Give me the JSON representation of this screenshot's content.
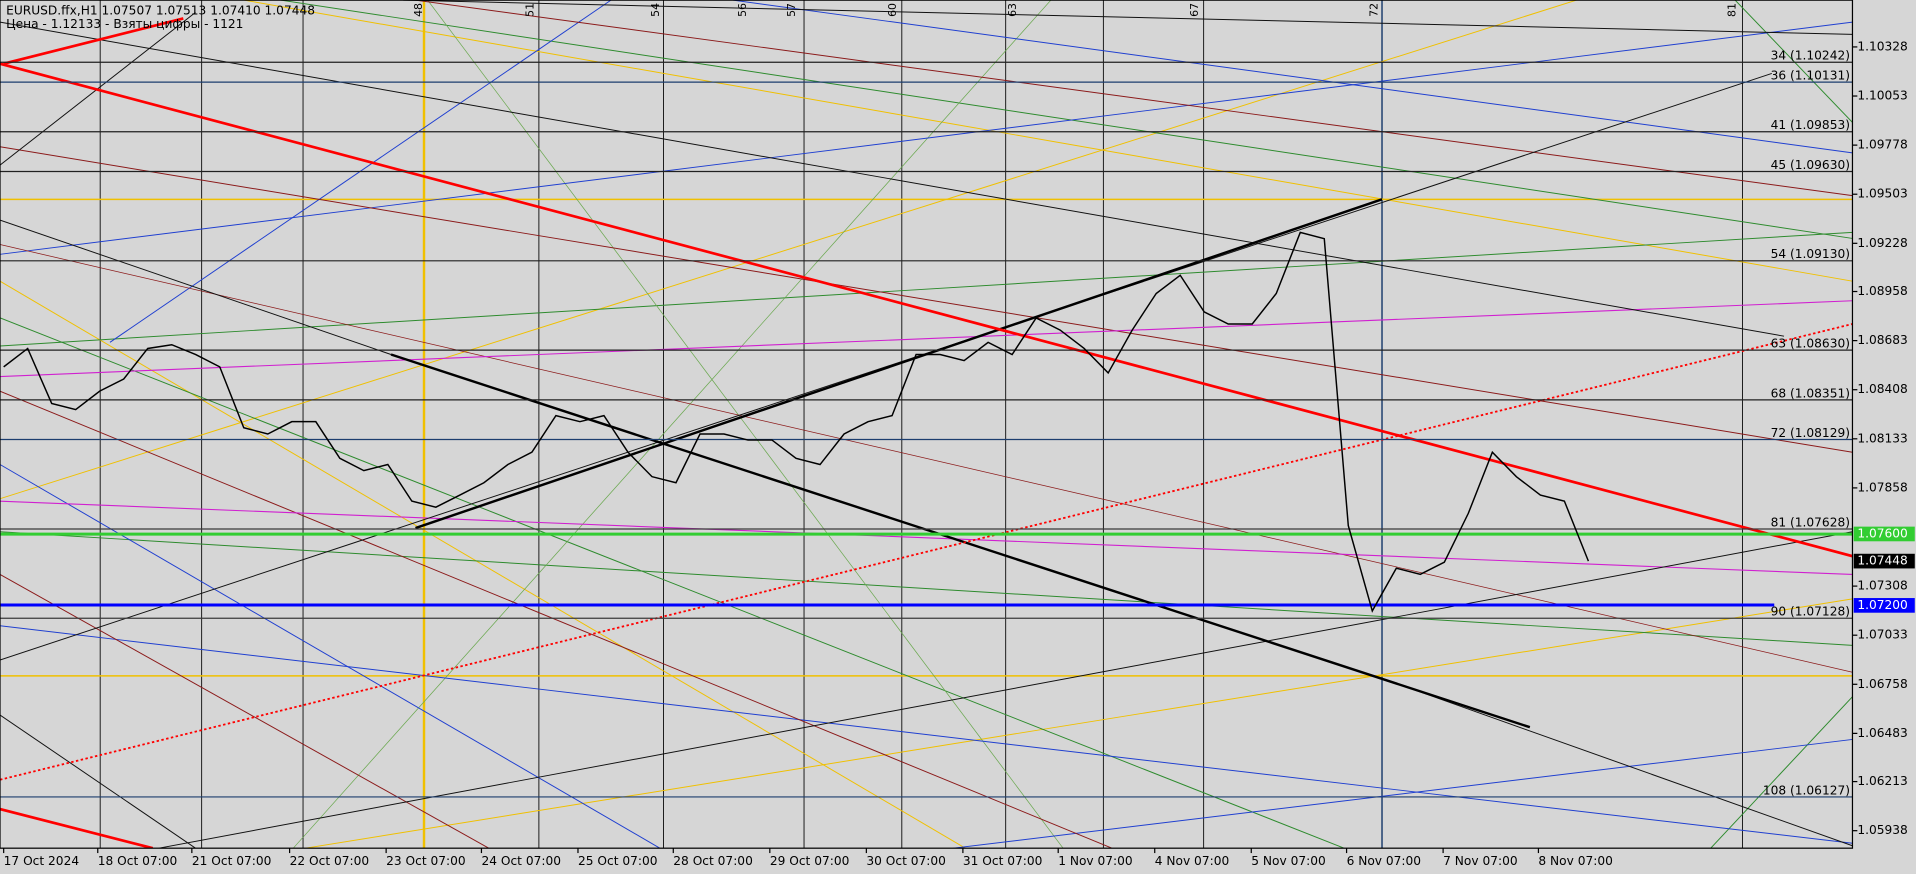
{
  "header": {
    "symbol_line": "EURUSD.ffx,H1  1.07507 1.07513 1.07410 1.07448",
    "info_line": "Цена - 1.12133 - Взяты цифры - 1121"
  },
  "chart_data": {
    "type": "line",
    "categories": [
      "17 Oct 2024",
      null,
      null,
      null,
      "18 Oct 07:00",
      null,
      null,
      null,
      "21 Oct 07:00",
      null,
      null,
      null,
      "22 Oct 07:00",
      null,
      null,
      null,
      "23 Oct 07:00",
      null,
      null,
      null,
      "24 Oct 07:00",
      null,
      null,
      null,
      "25 Oct 07:00",
      null,
      null,
      null,
      "28 Oct 07:00",
      null,
      null,
      null,
      "29 Oct 07:00",
      null,
      null,
      null,
      "30 Oct 07:00",
      null,
      null,
      null,
      "31 Oct 07:00",
      null,
      null,
      null,
      "1 Nov 07:00",
      null,
      null,
      null,
      "4 Nov 07:00",
      null,
      null,
      null,
      "5 Nov 07:00",
      null,
      null,
      null,
      "6 Nov 07:00",
      null,
      null,
      null,
      "7 Nov 07:00",
      null,
      null,
      null,
      "8 Nov 07:00",
      null,
      null
    ],
    "values": [
      1.08536,
      1.08639,
      1.08331,
      1.08297,
      1.084,
      1.08468,
      1.08639,
      1.0866,
      1.08605,
      1.08536,
      1.08195,
      1.0816,
      1.08229,
      1.08229,
      1.08024,
      1.07955,
      1.07989,
      1.07784,
      1.0775,
      1.07818,
      1.07887,
      1.07989,
      1.08058,
      1.08263,
      1.08229,
      1.08263,
      1.08058,
      1.07921,
      1.07887,
      1.0816,
      1.0816,
      1.08126,
      1.08126,
      1.08024,
      1.07989,
      1.0816,
      1.08229,
      1.08263,
      1.08605,
      1.08605,
      1.08571,
      1.08673,
      1.08605,
      1.0881,
      1.08742,
      1.08639,
      1.08502,
      1.08742,
      1.08947,
      1.09049,
      1.08844,
      1.08776,
      1.08776,
      1.08947,
      1.09289,
      1.09254,
      1.07647,
      1.07169,
      1.07408,
      1.07374,
      1.07442,
      1.07716,
      1.08058,
      1.07921,
      1.07818,
      1.07784,
      1.07448
    ],
    "color": "#000000",
    "ylim": [
      1.0584,
      1.1059
    ],
    "yticks": [
      1.10328,
      1.10053,
      1.09778,
      1.09503,
      1.09228,
      1.08958,
      1.08683,
      1.08408,
      1.08133,
      1.07858,
      1.07308,
      1.07033,
      1.06758,
      1.06483,
      1.06213,
      1.05938
    ],
    "levels": [
      {
        "value": 1.10242,
        "label": "34 (1.10242)",
        "color": "#202020"
      },
      {
        "value": 1.10131,
        "label": "36 (1.10131)",
        "color": "#1c3d6e"
      },
      {
        "value": 1.09853,
        "label": "41 (1.09853)",
        "color": "#202020"
      },
      {
        "value": 1.0963,
        "label": "45 (1.09630)",
        "color": "#202020"
      },
      {
        "value": 1.0913,
        "label": "54 (1.09130)",
        "color": "#202020"
      },
      {
        "value": 1.0863,
        "label": "63 (1.08630)",
        "color": "#202020"
      },
      {
        "value": 1.08351,
        "label": "68 (1.08351)",
        "color": "#202020"
      },
      {
        "value": 1.08129,
        "label": "72 (1.08129)",
        "color": "#1c3d6e"
      },
      {
        "value": 1.07628,
        "label": "81 (1.07628)",
        "color": "#3a3a3a"
      },
      {
        "value": 1.07128,
        "label": "90 (1.07128)",
        "color": "#3a3a3a"
      },
      {
        "value": 1.06127,
        "label": "108 (1.06127)",
        "color": "#1c3d6e"
      }
    ],
    "price_labels": [
      {
        "value": 1.076,
        "label": "1.07600",
        "color": "#32cd32"
      },
      {
        "value": 1.07448,
        "label": "1.07448",
        "color": "#000000"
      },
      {
        "value": 1.072,
        "label": "1.07200",
        "color": "#0000ff"
      }
    ],
    "vertical_markers": [
      "48",
      "51",
      "54",
      "56",
      "57",
      "60",
      "63",
      "67",
      "72",
      "81"
    ]
  }
}
